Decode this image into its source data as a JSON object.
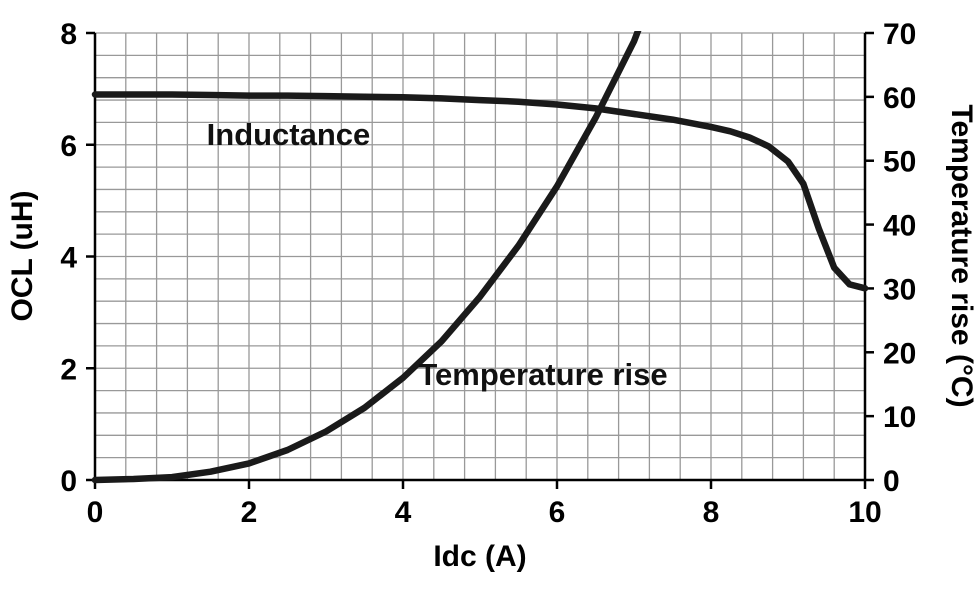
{
  "chart_data": {
    "type": "line",
    "title": "",
    "xlabel": "Idc (A)",
    "ylabel_left": "OCL (uH)",
    "ylabel_right": "Temperature rise (°C)",
    "x_range": [
      0,
      10
    ],
    "y_left_range": [
      0,
      8
    ],
    "y_right_range": [
      0,
      70
    ],
    "x_ticks": [
      0,
      2,
      4,
      6,
      8,
      10
    ],
    "y_left_ticks": [
      0,
      2,
      4,
      6,
      8
    ],
    "y_right_ticks": [
      0,
      10,
      20,
      30,
      40,
      50,
      60,
      70
    ],
    "grid": {
      "x_minor_step": 0.4,
      "y_minor_step": 0.4
    },
    "grid_color": "#999999",
    "axis_color": "#000000",
    "line_color": "#1a1a1a",
    "background_color": "#ffffff",
    "legend_position": "none",
    "series": [
      {
        "name": "Inductance",
        "axis": "left",
        "width": 6.5,
        "x": [
          0,
          0.5,
          1,
          1.5,
          2,
          2.5,
          3,
          3.5,
          4,
          4.5,
          5,
          5.5,
          6,
          6.5,
          7,
          7.5,
          8,
          8.25,
          8.5,
          8.75,
          9,
          9.2,
          9.4,
          9.6,
          9.8,
          10
        ],
        "y": [
          6.9,
          6.9,
          6.9,
          6.89,
          6.88,
          6.88,
          6.87,
          6.86,
          6.85,
          6.83,
          6.8,
          6.77,
          6.72,
          6.65,
          6.55,
          6.45,
          6.32,
          6.24,
          6.13,
          5.97,
          5.7,
          5.3,
          4.5,
          3.8,
          3.5,
          3.43
        ]
      },
      {
        "name": "Temperature rise",
        "axis": "right",
        "width": 6.5,
        "x": [
          0,
          0.5,
          1,
          1.5,
          2,
          2.5,
          3,
          3.5,
          4,
          4.5,
          5,
          5.5,
          6,
          6.5,
          7,
          7.2
        ],
        "y": [
          0,
          0.15,
          0.45,
          1.3,
          2.6,
          4.7,
          7.6,
          11.3,
          16,
          21.7,
          28.7,
          36.7,
          46,
          56.7,
          68.7,
          75
        ]
      }
    ],
    "annotations": [
      {
        "text": "Inductance",
        "x": 1.45,
        "y": 6.0
      },
      {
        "text": "Temperature rise",
        "x": 4.2,
        "y": 1.7
      }
    ]
  }
}
